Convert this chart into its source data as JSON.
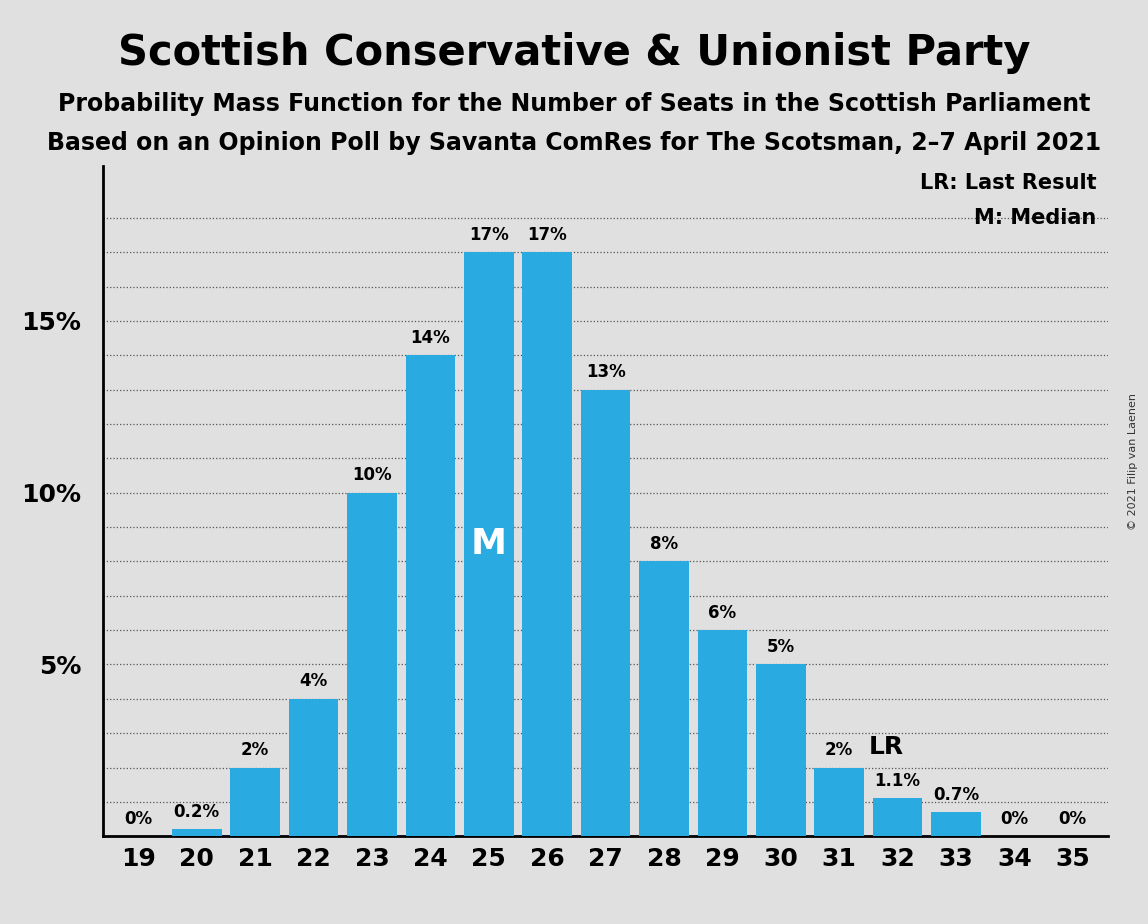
{
  "title": "Scottish Conservative & Unionist Party",
  "subtitle1": "Probability Mass Function for the Number of Seats in the Scottish Parliament",
  "subtitle2": "Based on an Opinion Poll by Savanta ComRes for The Scotsman, 2–7 April 2021",
  "copyright": "© 2021 Filip van Laenen",
  "categories": [
    19,
    20,
    21,
    22,
    23,
    24,
    25,
    26,
    27,
    28,
    29,
    30,
    31,
    32,
    33,
    34,
    35
  ],
  "values": [
    0.0,
    0.2,
    2.0,
    4.0,
    10.0,
    14.0,
    17.0,
    17.0,
    13.0,
    8.0,
    6.0,
    5.0,
    2.0,
    1.1,
    0.7,
    0.0,
    0.0
  ],
  "bar_color": "#29abe2",
  "background_color": "#e0e0e0",
  "plot_bg_color": "#e0e0e0",
  "median_seat": 25,
  "last_result_seat": 31,
  "legend_lr": "LR: Last Result",
  "legend_m": "M: Median",
  "annotations": {
    "19": "0%",
    "20": "0.2%",
    "21": "2%",
    "22": "4%",
    "23": "10%",
    "24": "14%",
    "25": "17%",
    "26": "17%",
    "27": "13%",
    "28": "8%",
    "29": "6%",
    "30": "5%",
    "31": "2%",
    "32": "1.1%",
    "33": "0.7%",
    "34": "0%",
    "35": "0%"
  },
  "ylim": [
    0,
    19.5
  ],
  "yticks": [
    5,
    10,
    15
  ],
  "ytick_labels": [
    "5%",
    "10%",
    "15%"
  ],
  "title_fontsize": 30,
  "subtitle_fontsize": 17,
  "tick_fontsize": 18,
  "annotation_fontsize": 12,
  "lr_fontsize": 18,
  "legend_fontsize": 15
}
